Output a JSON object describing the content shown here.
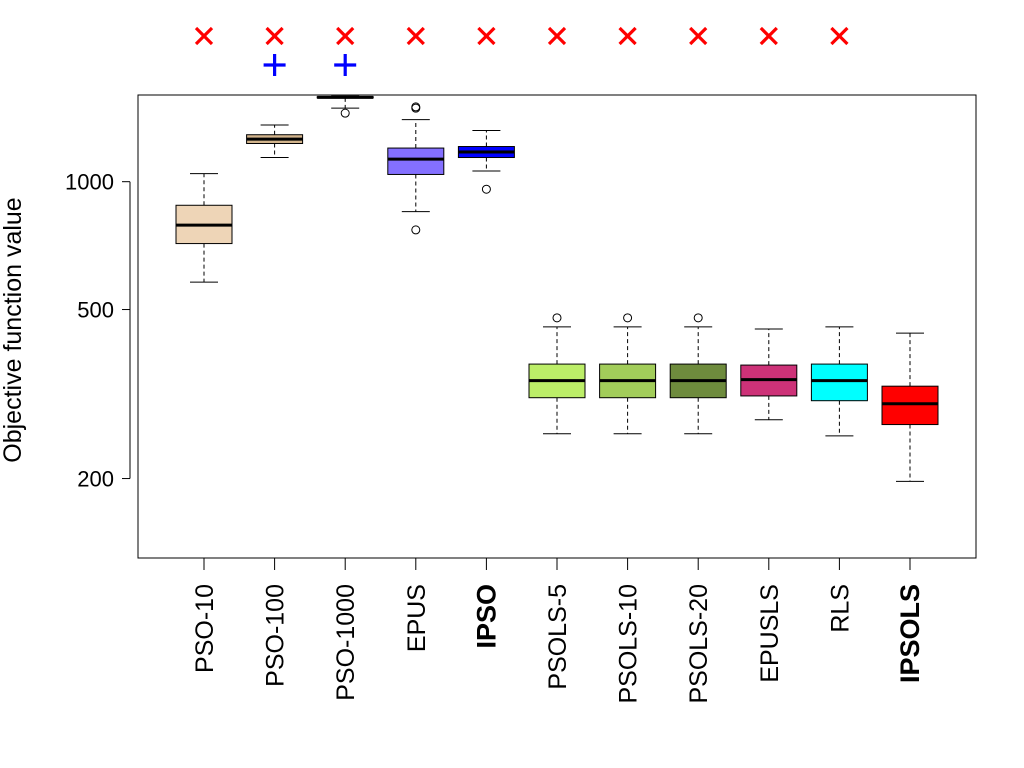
{
  "chart_data": {
    "type": "boxplot",
    "title": "",
    "xlabel": "",
    "ylabel": "Objective function value",
    "y_scale": "log",
    "ylim": [
      130,
      1600
    ],
    "y_ticks": [
      200,
      500,
      1000
    ],
    "y_tick_labels": [
      "200",
      "500",
      "1000"
    ],
    "grid": false,
    "categories": [
      "PSO-10",
      "PSO-100",
      "PSO-1000",
      "EPUS",
      "IPSO",
      "PSOLS-5",
      "PSOLS-10",
      "PSOLS-20",
      "EPUSLS",
      "RLS",
      "IPSOLS"
    ],
    "bold_categories": [
      "IPSO",
      "IPSOLS"
    ],
    "colors": [
      "#EED5B7",
      "#D2B48C",
      "#D2B48C",
      "#8470FF",
      "#0000FF",
      "#BCEE68",
      "#A2CD5A",
      "#6E8B3D",
      "#CD3278",
      "#00FFFF",
      "#FF0000"
    ],
    "markers": {
      "cross": {
        "symbol": "×",
        "color": "#FF0000",
        "categories": [
          "PSO-10",
          "PSO-100",
          "PSO-1000",
          "EPUS",
          "IPSO",
          "PSOLS-5",
          "PSOLS-10",
          "PSOLS-20",
          "EPUSLS",
          "RLS"
        ]
      },
      "plus": {
        "symbol": "+",
        "color": "#0000FF",
        "categories": [
          "PSO-100",
          "PSO-1000"
        ]
      }
    },
    "boxes": [
      {
        "name": "PSO-10",
        "whisker_low": 580,
        "q1": 715,
        "median": 790,
        "q3": 880,
        "whisker_high": 1045,
        "outliers": []
      },
      {
        "name": "PSO-100",
        "whisker_low": 1140,
        "q1": 1230,
        "median": 1260,
        "q3": 1290,
        "whisker_high": 1360,
        "outliers": []
      },
      {
        "name": "PSO-1000",
        "whisker_low": 1490,
        "q1": 1575,
        "median": 1580,
        "q3": 1585,
        "whisker_high": 1590,
        "outliers": [
          1450
        ]
      },
      {
        "name": "EPUS",
        "whisker_low": 850,
        "q1": 1040,
        "median": 1130,
        "q3": 1200,
        "whisker_high": 1400,
        "outliers": [
          770,
          1490,
          1500
        ]
      },
      {
        "name": "IPSO",
        "whisker_low": 1060,
        "q1": 1140,
        "median": 1175,
        "q3": 1210,
        "whisker_high": 1320,
        "outliers": [
          960
        ]
      },
      {
        "name": "PSOLS-5",
        "whisker_low": 255,
        "q1": 310,
        "median": 340,
        "q3": 372,
        "whisker_high": 455,
        "outliers": [
          478
        ]
      },
      {
        "name": "PSOLS-10",
        "whisker_low": 255,
        "q1": 310,
        "median": 340,
        "q3": 372,
        "whisker_high": 455,
        "outliers": [
          478
        ]
      },
      {
        "name": "PSOLS-20",
        "whisker_low": 255,
        "q1": 310,
        "median": 340,
        "q3": 372,
        "whisker_high": 455,
        "outliers": [
          478
        ]
      },
      {
        "name": "EPUSLS",
        "whisker_low": 275,
        "q1": 313,
        "median": 342,
        "q3": 370,
        "whisker_high": 450,
        "outliers": []
      },
      {
        "name": "RLS",
        "whisker_low": 252,
        "q1": 305,
        "median": 340,
        "q3": 372,
        "whisker_high": 455,
        "outliers": []
      },
      {
        "name": "IPSOLS",
        "whisker_low": 197,
        "q1": 268,
        "median": 300,
        "q3": 330,
        "whisker_high": 440,
        "outliers": []
      }
    ]
  }
}
